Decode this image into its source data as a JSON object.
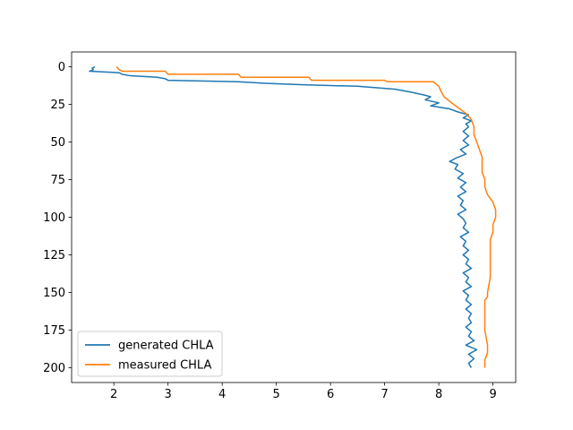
{
  "chart_data": {
    "type": "line",
    "title": "",
    "xlabel": "",
    "ylabel": "",
    "xlim": [
      1.22,
      9.42
    ],
    "ylim": [
      209.8,
      -9.8
    ],
    "y_inverted": true,
    "xticks": [
      2,
      3,
      4,
      5,
      6,
      7,
      8,
      9
    ],
    "yticks": [
      0,
      25,
      50,
      75,
      100,
      125,
      150,
      175,
      200
    ],
    "grid": false,
    "legend_position": "lower-left",
    "series": [
      {
        "name": "generated CHLA",
        "color": "#1f77b4",
        "points": [
          [
            1.65,
            0
          ],
          [
            1.6,
            1
          ],
          [
            1.62,
            2
          ],
          [
            1.55,
            3
          ],
          [
            2.1,
            4
          ],
          [
            2.15,
            5
          ],
          [
            2.3,
            6
          ],
          [
            2.8,
            7
          ],
          [
            2.95,
            8
          ],
          [
            3.0,
            9
          ],
          [
            4.3,
            10
          ],
          [
            4.8,
            11
          ],
          [
            5.5,
            12
          ],
          [
            6.5,
            13
          ],
          [
            7.2,
            15
          ],
          [
            7.5,
            17
          ],
          [
            7.75,
            19
          ],
          [
            7.85,
            20
          ],
          [
            7.75,
            22
          ],
          [
            8.0,
            24
          ],
          [
            7.85,
            26
          ],
          [
            8.2,
            28
          ],
          [
            8.35,
            30
          ],
          [
            8.55,
            32
          ],
          [
            8.45,
            34
          ],
          [
            8.6,
            36
          ],
          [
            8.5,
            38
          ],
          [
            8.55,
            40
          ],
          [
            8.45,
            43
          ],
          [
            8.55,
            46
          ],
          [
            8.45,
            49
          ],
          [
            8.55,
            52
          ],
          [
            8.4,
            55
          ],
          [
            8.5,
            58
          ],
          [
            8.3,
            61
          ],
          [
            8.2,
            63
          ],
          [
            8.35,
            65
          ],
          [
            8.3,
            68
          ],
          [
            8.45,
            71
          ],
          [
            8.35,
            74
          ],
          [
            8.5,
            77
          ],
          [
            8.4,
            80
          ],
          [
            8.5,
            83
          ],
          [
            8.35,
            86
          ],
          [
            8.45,
            89
          ],
          [
            8.4,
            92
          ],
          [
            8.5,
            95
          ],
          [
            8.35,
            98
          ],
          [
            8.45,
            101
          ],
          [
            8.5,
            104
          ],
          [
            8.45,
            107
          ],
          [
            8.55,
            110
          ],
          [
            8.4,
            113
          ],
          [
            8.5,
            116
          ],
          [
            8.45,
            119
          ],
          [
            8.55,
            122
          ],
          [
            8.45,
            125
          ],
          [
            8.55,
            128
          ],
          [
            8.5,
            131
          ],
          [
            8.6,
            134
          ],
          [
            8.45,
            137
          ],
          [
            8.55,
            140
          ],
          [
            8.5,
            143
          ],
          [
            8.6,
            146
          ],
          [
            8.45,
            149
          ],
          [
            8.55,
            152
          ],
          [
            8.5,
            155
          ],
          [
            8.6,
            158
          ],
          [
            8.5,
            161
          ],
          [
            8.6,
            164
          ],
          [
            8.55,
            167
          ],
          [
            8.6,
            170
          ],
          [
            8.5,
            173
          ],
          [
            8.6,
            176
          ],
          [
            8.55,
            179
          ],
          [
            8.65,
            182
          ],
          [
            8.5,
            185
          ],
          [
            8.7,
            188
          ],
          [
            8.55,
            191
          ],
          [
            8.65,
            194
          ],
          [
            8.55,
            197
          ],
          [
            8.6,
            200
          ]
        ]
      },
      {
        "name": "measured CHLA",
        "color": "#ff7f0e",
        "points": [
          [
            2.05,
            0
          ],
          [
            2.1,
            2
          ],
          [
            2.15,
            3
          ],
          [
            2.95,
            3
          ],
          [
            3.0,
            5
          ],
          [
            4.3,
            5
          ],
          [
            4.35,
            7
          ],
          [
            5.6,
            7
          ],
          [
            5.65,
            9
          ],
          [
            7.0,
            9
          ],
          [
            7.05,
            10
          ],
          [
            7.9,
            10
          ],
          [
            8.0,
            13
          ],
          [
            8.05,
            17
          ],
          [
            8.1,
            20
          ],
          [
            8.2,
            23
          ],
          [
            8.35,
            27
          ],
          [
            8.5,
            31
          ],
          [
            8.6,
            35
          ],
          [
            8.65,
            40
          ],
          [
            8.65,
            45
          ],
          [
            8.7,
            50
          ],
          [
            8.75,
            55
          ],
          [
            8.8,
            60
          ],
          [
            8.8,
            70
          ],
          [
            8.85,
            75
          ],
          [
            8.85,
            80
          ],
          [
            8.9,
            85
          ],
          [
            9.0,
            90
          ],
          [
            9.05,
            95
          ],
          [
            9.05,
            100
          ],
          [
            9.0,
            105
          ],
          [
            9.0,
            110
          ],
          [
            8.95,
            115
          ],
          [
            8.95,
            120
          ],
          [
            8.95,
            130
          ],
          [
            8.95,
            140
          ],
          [
            8.9,
            150
          ],
          [
            8.9,
            153
          ],
          [
            8.85,
            155
          ],
          [
            8.85,
            165
          ],
          [
            8.85,
            175
          ],
          [
            8.9,
            185
          ],
          [
            8.9,
            190
          ],
          [
            8.85,
            195
          ],
          [
            8.85,
            200
          ]
        ]
      }
    ]
  }
}
